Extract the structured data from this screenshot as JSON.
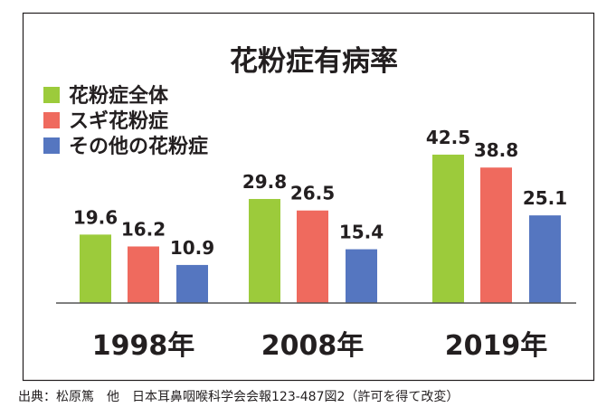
{
  "chart_data": {
    "type": "bar",
    "title": "花粉症有病率",
    "categories": [
      "1998年",
      "2008年",
      "2019年"
    ],
    "series": [
      {
        "name": "花粉症全体",
        "color": "#9ccb3b",
        "values": [
          19.6,
          29.8,
          42.5
        ]
      },
      {
        "name": "スギ花粉症",
        "color": "#ef6a5e",
        "values": [
          16.2,
          26.5,
          38.8
        ]
      },
      {
        "name": "その他の花粉症",
        "color": "#5576c0",
        "values": [
          10.9,
          15.4,
          25.1
        ]
      }
    ],
    "ylim": [
      0,
      45
    ],
    "grid": false,
    "legend": "top-left",
    "data_labels": true
  },
  "source": "出典：松原篤　他　日本耳鼻咽喉科学会会報123-487図2（許可を得て改変）"
}
